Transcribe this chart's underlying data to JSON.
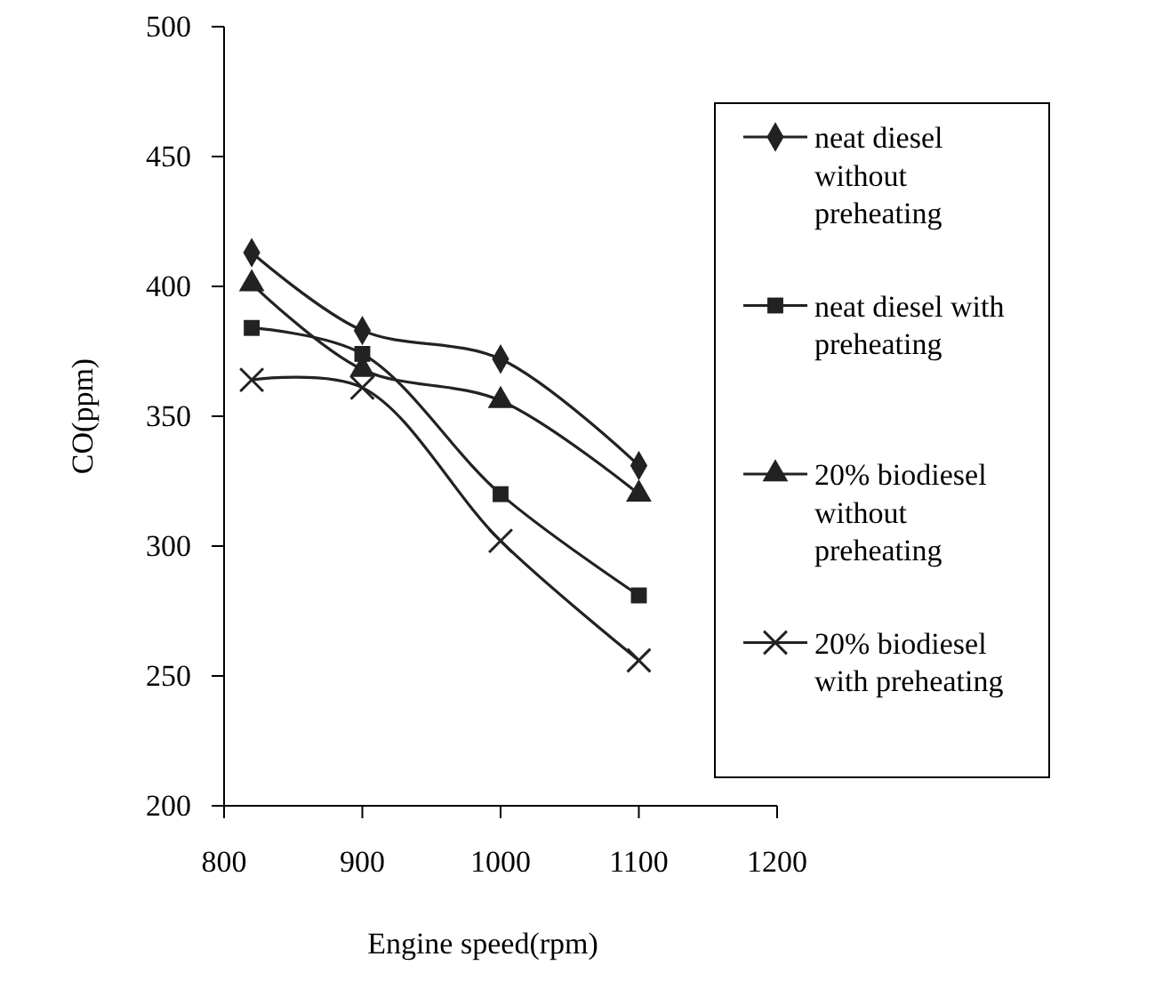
{
  "chart_data": {
    "type": "line",
    "xlabel": "Engine speed(rpm)",
    "ylabel": "CO(ppm)",
    "x": [
      820,
      900,
      1000,
      1100
    ],
    "xlim": [
      800,
      1200
    ],
    "xticks": [
      800,
      900,
      1000,
      1100,
      1200
    ],
    "ylim": [
      200,
      500
    ],
    "yticks": [
      200,
      250,
      300,
      350,
      400,
      450,
      500
    ],
    "grid": false,
    "legend": "right",
    "line_style": "solid",
    "series": [
      {
        "name": "neat diesel without preheating",
        "color": "#222222",
        "marker": "diamond",
        "values": [
          413,
          383,
          372,
          331
        ]
      },
      {
        "name": "neat diesel with preheating",
        "color": "#222222",
        "marker": "square",
        "values": [
          384,
          374,
          320,
          281
        ]
      },
      {
        "name": "20% biodiesel without preheating",
        "color": "#222222",
        "marker": "triangle",
        "values": [
          401,
          368,
          356,
          320
        ]
      },
      {
        "name": "20% biodiesel with preheating",
        "color": "#222222",
        "marker": "cross",
        "values": [
          364,
          361,
          302,
          256
        ]
      }
    ]
  }
}
